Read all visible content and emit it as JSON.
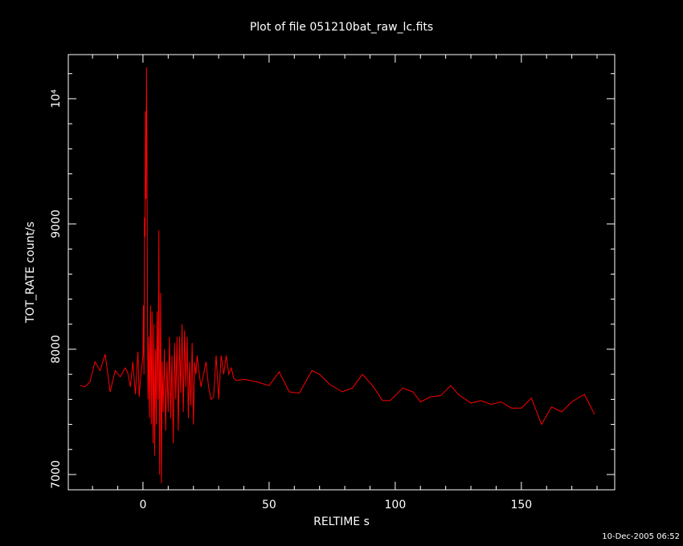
{
  "chart_data": {
    "type": "line",
    "title": "Plot of file 051210bat_raw_lc.fits",
    "x_label": "RELTIME  s",
    "y_label": "TOT_RATE  count/s",
    "timestamp": "10-Dec-2005 06:52",
    "xlim": [
      -29.6,
      187
    ],
    "ylim": [
      6878,
      10352
    ],
    "xticks": [
      0,
      50,
      100,
      150
    ],
    "yticks": [
      7000,
      8000,
      9000,
      {
        "value": 10000,
        "label": "10⁴"
      }
    ],
    "xminorticks": [
      -20,
      -10,
      10,
      20,
      30,
      40,
      60,
      70,
      80,
      90,
      110,
      120,
      130,
      140,
      160,
      170,
      180
    ],
    "yminorticks": [
      7200,
      7400,
      7600,
      7800,
      8200,
      8400,
      8600,
      8800,
      9200,
      9400,
      9600,
      9800,
      10200
    ],
    "x": [
      -25,
      -23,
      -21,
      -19,
      -17,
      -15,
      -13,
      -11,
      -9,
      -7,
      -6,
      -5,
      -4,
      -3,
      -2,
      -1.5,
      -1,
      0,
      0.2,
      0.4,
      0.6,
      0.8,
      1.0,
      1.2,
      1.4,
      1.6,
      1.8,
      2,
      2.3,
      2.6,
      3,
      3.3,
      3.6,
      4,
      4.3,
      4.6,
      5,
      5.3,
      5.6,
      6,
      6.3,
      6.6,
      7,
      7.3,
      7.6,
      8,
      8.5,
      9,
      9.5,
      10,
      10.5,
      11,
      11.5,
      12,
      12.5,
      13,
      13.5,
      14,
      14.5,
      15,
      15.5,
      16,
      16.5,
      17,
      17.5,
      18,
      18.5,
      19,
      19.5,
      20,
      20.5,
      21,
      21.5,
      22,
      23,
      24,
      25,
      26,
      27,
      28,
      29,
      30,
      31,
      32,
      33,
      34,
      35,
      36,
      37,
      40,
      45,
      50,
      54,
      58,
      62,
      67,
      70,
      74,
      79,
      83,
      87,
      91,
      95,
      98,
      103,
      107,
      110,
      114,
      118,
      122,
      125,
      130,
      134,
      138,
      142,
      146,
      150,
      154,
      158,
      162,
      166,
      170,
      175,
      179
    ],
    "series": [
      {
        "name": "TOT_RATE",
        "color": "#ff0000",
        "values": [
          7710,
          7700,
          7740,
          7900,
          7830,
          7960,
          7660,
          7830,
          7780,
          7850,
          7810,
          7700,
          7900,
          7640,
          7980,
          7620,
          7760,
          7950,
          8350,
          7800,
          9050,
          8900,
          9900,
          9200,
          10250,
          9500,
          8200,
          7600,
          8100,
          7450,
          8350,
          7400,
          8300,
          7250,
          8200,
          7150,
          8000,
          7400,
          8300,
          7600,
          8950,
          7000,
          8450,
          6930,
          7900,
          7500,
          8000,
          7350,
          7900,
          7500,
          8100,
          7450,
          7950,
          7250,
          8050,
          7600,
          8100,
          7350,
          8100,
          7650,
          8200,
          7500,
          8150,
          7700,
          8100,
          7450,
          7900,
          7550,
          8050,
          7400,
          7900,
          7800,
          7950,
          7850,
          7700,
          7800,
          7900,
          7700,
          7600,
          7620,
          7950,
          7600,
          7950,
          7800,
          7950,
          7800,
          7850,
          7770,
          7750,
          7760,
          7740,
          7710,
          7820,
          7660,
          7650,
          7830,
          7800,
          7720,
          7660,
          7690,
          7800,
          7710,
          7590,
          7590,
          7690,
          7660,
          7580,
          7620,
          7630,
          7710,
          7640,
          7570,
          7590,
          7560,
          7580,
          7530,
          7530,
          7610,
          7400,
          7540,
          7500,
          7580,
          7640,
          7480
        ]
      }
    ]
  }
}
